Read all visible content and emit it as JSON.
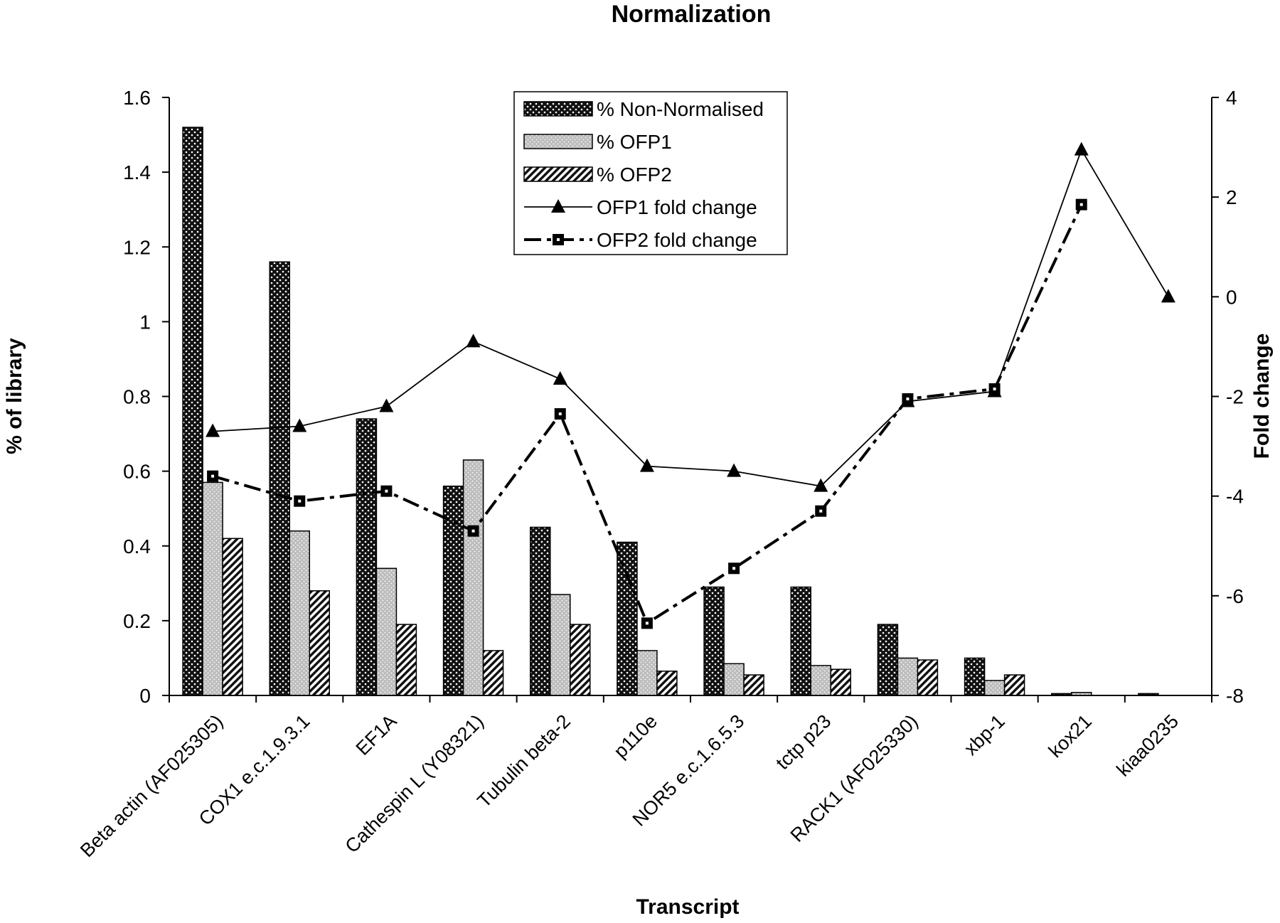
{
  "chart_data": {
    "type": "bar",
    "title": "Normalization",
    "xlabel": "Transcript",
    "ylabel": "% of library",
    "y2label": "Fold change",
    "ylim": [
      0,
      1.6
    ],
    "y2lim": [
      -8,
      4
    ],
    "yticks": [
      "0",
      "0.2",
      "0.4",
      "0.6",
      "0.8",
      "1",
      "1.2",
      "1.4",
      "1.6"
    ],
    "y2ticks": [
      "-8",
      "-6",
      "-4",
      "-2",
      "0",
      "2",
      "4"
    ],
    "grid": false,
    "legend_position": "top-center",
    "categories": [
      "Beta actin (AF025305)",
      "COX1 e.c.1.9.3.1",
      "EF1A",
      "Cathespin L (Y08321)",
      "Tubulin beta-2",
      "p110e",
      "NOR5 e.c.1.6.5.3",
      "tctp p23",
      "RACK1 (AF025330)",
      "xbp-1",
      "kox21",
      "kiaa0235"
    ],
    "series": [
      {
        "name": "% Non-Normalised",
        "kind": "bar",
        "axis": "left",
        "pattern": "dots-dark",
        "values": [
          1.52,
          1.16,
          0.74,
          0.56,
          0.45,
          0.41,
          0.29,
          0.29,
          0.19,
          0.1,
          0.005,
          0.005
        ]
      },
      {
        "name": "% OFP1",
        "kind": "bar",
        "axis": "left",
        "pattern": "dots-light",
        "values": [
          0.57,
          0.44,
          0.34,
          0.63,
          0.27,
          0.12,
          0.085,
          0.08,
          0.1,
          0.04,
          0.008,
          0
        ]
      },
      {
        "name": "% OFP2",
        "kind": "bar",
        "axis": "left",
        "pattern": "hatch",
        "values": [
          0.42,
          0.28,
          0.19,
          0.12,
          0.19,
          0.065,
          0.055,
          0.07,
          0.095,
          0.055,
          0,
          0
        ]
      },
      {
        "name": "OFP1 fold change",
        "kind": "line",
        "axis": "right",
        "marker": "triangle",
        "values": [
          -2.7,
          -2.6,
          -2.2,
          -0.9,
          -1.65,
          -3.4,
          -3.5,
          -3.8,
          -2.1,
          -1.9,
          2.95,
          0
        ]
      },
      {
        "name": "OFP2 fold change",
        "kind": "line",
        "axis": "right",
        "marker": "square",
        "dashed": true,
        "values": [
          -3.6,
          -4.1,
          -3.9,
          -4.7,
          -2.35,
          -6.55,
          -5.45,
          -4.3,
          -2.05,
          -1.85,
          1.85,
          null
        ]
      }
    ]
  }
}
